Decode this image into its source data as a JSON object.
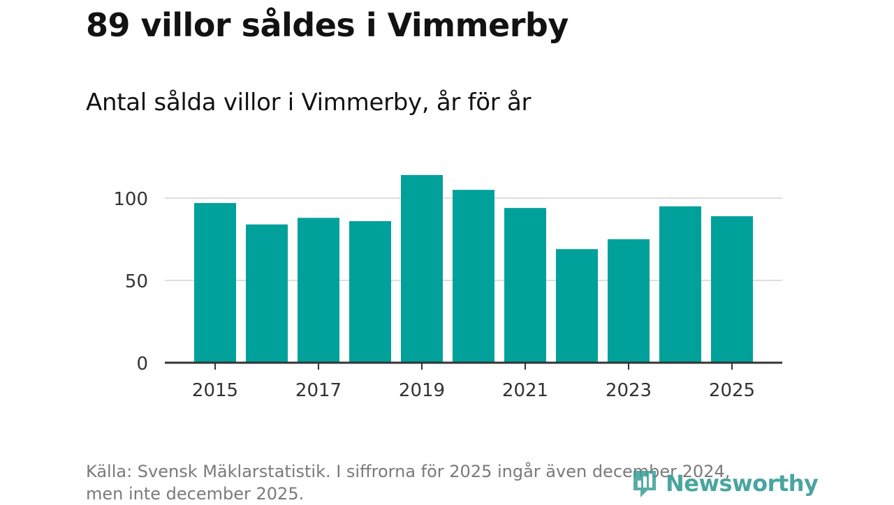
{
  "header": {
    "title": "89 villor såldes i Vimmerby",
    "subtitle": "Antal sålda villor i Vimmerby, år för år"
  },
  "chart_data": {
    "type": "bar",
    "title": "Antal sålda villor i Vimmerby, år för år",
    "xlabel": "",
    "ylabel": "",
    "categories": [
      "2015",
      "2016",
      "2017",
      "2018",
      "2019",
      "2020",
      "2021",
      "2022",
      "2023",
      "2024",
      "2025"
    ],
    "values": [
      97,
      84,
      88,
      86,
      114,
      105,
      94,
      69,
      75,
      95,
      89
    ],
    "x_tick_labels": [
      "2015",
      "2017",
      "2019",
      "2021",
      "2023",
      "2025"
    ],
    "y_ticks": [
      0,
      50,
      100
    ],
    "y_tick_labels": [
      "0",
      "50",
      "100"
    ],
    "ylim": [
      0,
      115
    ],
    "grid": true,
    "bar_color": "#00a19a"
  },
  "footer": {
    "source_line1": "Källa: Svensk Mäklarstatistik. I siffrorna för 2025 ingår även december 2024,",
    "source_line2": "men inte december 2025."
  },
  "branding": {
    "logo_text": "Newsworthy",
    "logo_icon": "newsworthy-chart-icon",
    "logo_color": "#3a9e97"
  }
}
